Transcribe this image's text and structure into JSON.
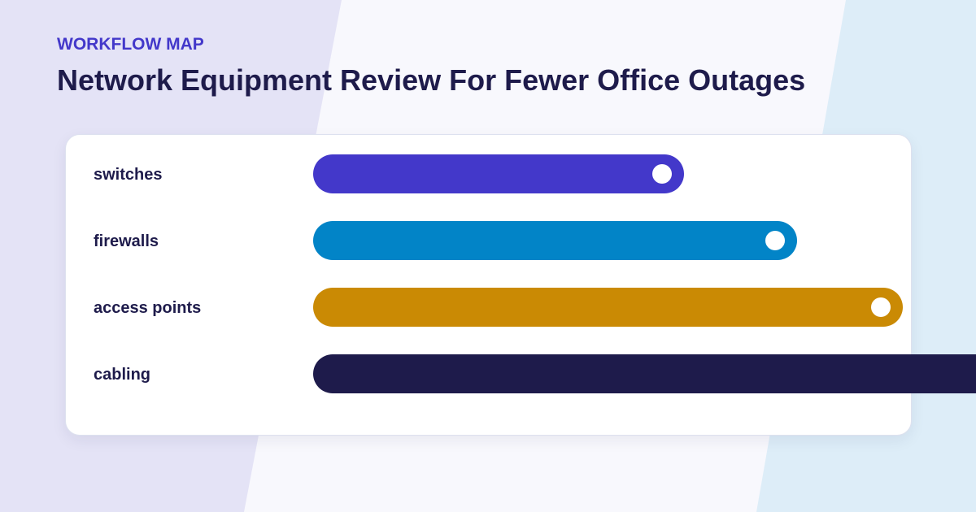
{
  "header": {
    "eyebrow": "WORKFLOW MAP",
    "title": "Network Equipment Review For Fewer Office Outages"
  },
  "colors": {
    "background_left": "#e4e3f6",
    "background_mid": "#f8f8fd",
    "background_right": "#ddedf8",
    "label_text": "#1e1b4b",
    "eyebrow_text": "#4338ca"
  },
  "chart_data": {
    "type": "bar",
    "orientation": "horizontal",
    "categories": [
      "switches",
      "firewalls",
      "access points",
      "cabling"
    ],
    "values": [
      0.56,
      0.73,
      0.89,
      1.0
    ],
    "value_scale": "fraction of the longest bar",
    "colors": [
      "#4338ca",
      "#0284c7",
      "#ca8a04",
      "#1e1b4b"
    ],
    "end_markers": [
      true,
      true,
      true,
      false
    ],
    "title": "Network Equipment Review For Fewer Office Outages",
    "xlabel": "",
    "ylabel": "",
    "axes_visible": false,
    "grid": false,
    "legend": "none"
  }
}
